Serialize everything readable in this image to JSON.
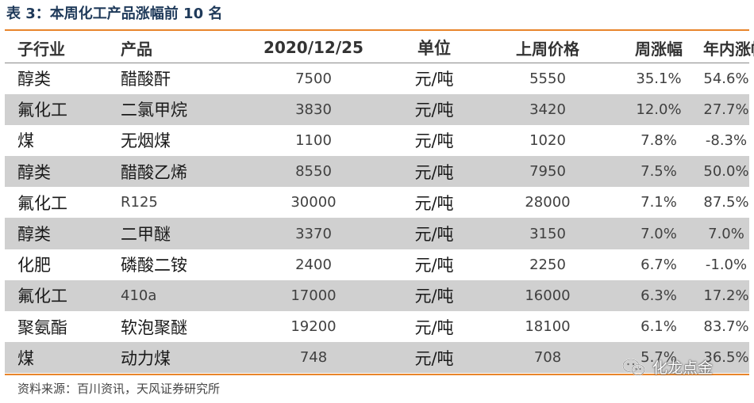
{
  "title": "表 3：本周化工产品涨幅前 10 名",
  "headers": [
    "子行业",
    "产品",
    "2020/12/25",
    "单位",
    "上周价格",
    "周涨幅",
    "年内涨幅"
  ],
  "rows": [
    [
      "醇类",
      "醋酸酐",
      "7500",
      "元/吨",
      "5550",
      "35.1%",
      "54.6%"
    ],
    [
      "氟化工",
      "二氯甲烷",
      "3830",
      "元/吨",
      "3420",
      "12.0%",
      "27.7%"
    ],
    [
      "煤",
      "无烟煤",
      "1100",
      "元/吨",
      "1020",
      "7.8%",
      "-8.3%"
    ],
    [
      "醇类",
      "醋酸乙烯",
      "8550",
      "元/吨",
      "7950",
      "7.5%",
      "50.0%"
    ],
    [
      "氟化工",
      "R125",
      "30000",
      "元/吨",
      "28000",
      "7.1%",
      "87.5%"
    ],
    [
      "醇类",
      "二甲醚",
      "3370",
      "元/吨",
      "3150",
      "7.0%",
      "7.0%"
    ],
    [
      "化肥",
      "磷酸二铵",
      "2400",
      "元/吨",
      "2250",
      "6.7%",
      "-1.0%"
    ],
    [
      "氟化工",
      "410a",
      "17000",
      "元/吨",
      "16000",
      "6.3%",
      "17.2%"
    ],
    [
      "聚氨酯",
      "软泡聚醚",
      "19200",
      "元/吨",
      "18100",
      "6.1%",
      "83.7%"
    ],
    [
      "煤",
      "动力煤",
      "748",
      "元/吨",
      "708",
      "5.7%",
      "36.5%"
    ]
  ],
  "source": "资料来源：百川资讯，天风证券研究所",
  "watermark": {
    "text": "化龙点金",
    "icon": "wechat-icon"
  },
  "colors": {
    "rule": "#e8852b",
    "stripe": "#d0d0d0",
    "title": "#1f3a5a"
  }
}
